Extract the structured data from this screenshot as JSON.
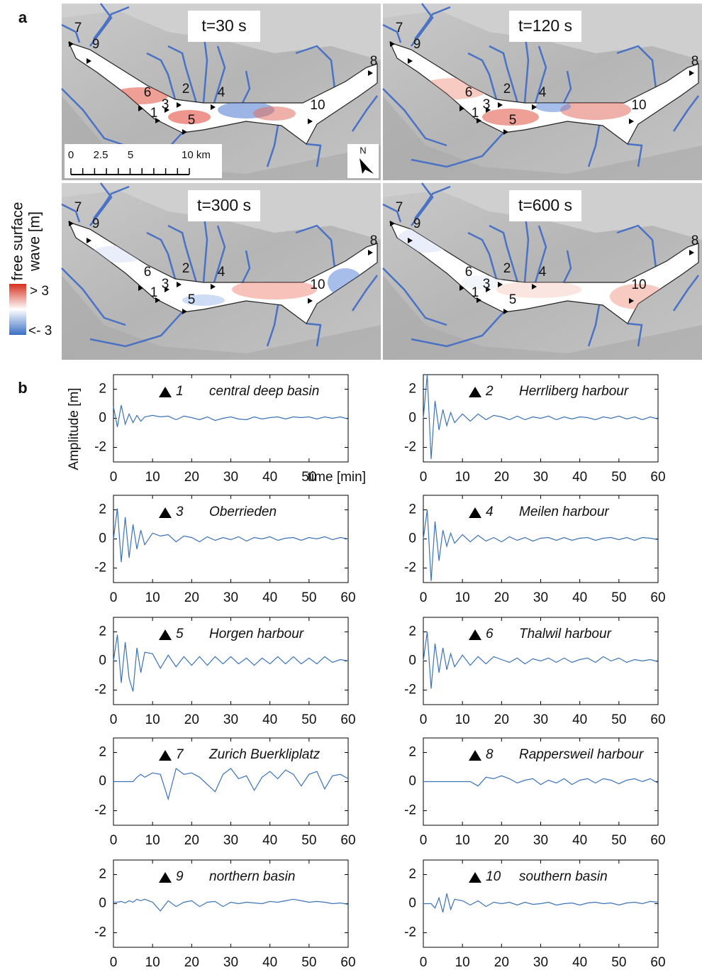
{
  "panel_a": {
    "label": "a",
    "times": [
      "t=30 s",
      "t=120 s",
      "t=300 s",
      "t=600 s"
    ],
    "stations": [
      "1",
      "2",
      "3",
      "4",
      "5",
      "6",
      "7",
      "8",
      "9",
      "10"
    ],
    "scale_labels": [
      "0",
      "2.5",
      "5",
      "10 km"
    ],
    "north": "N",
    "legend": {
      "title": [
        "free surface",
        "wave [m]"
      ],
      "high": "> 3",
      "low": "<- 3"
    }
  },
  "panel_b": {
    "label": "b"
  },
  "chart_data": [
    {
      "type": "line",
      "station": "1",
      "title": "central deep basin",
      "ylabel": "Amplitude [m]",
      "xlabel": "time [min]",
      "x": [
        0,
        1,
        2,
        3,
        4,
        5,
        6,
        7,
        8,
        10,
        12,
        14,
        16,
        18,
        20,
        22,
        24,
        26,
        28,
        30,
        32,
        34,
        36,
        38,
        40,
        42,
        44,
        46,
        48,
        50,
        52,
        54,
        56,
        58,
        60
      ],
      "series": [
        {
          "color": "#3b73b9",
          "values": [
            0.8,
            -0.6,
            0.9,
            -0.4,
            0.3,
            -0.3,
            0.2,
            -0.2,
            0.1,
            0.2,
            0.1,
            0.15,
            -0.1,
            0.15,
            0.05,
            -0.1,
            0.1,
            -0.15,
            0.0,
            0.1,
            -0.05,
            -0.1,
            0.1,
            -0.05,
            0.05,
            0.1,
            -0.05,
            0.1,
            0.05,
            0.1,
            -0.05,
            0.1,
            0.0,
            0.1,
            -0.05
          ]
        }
      ],
      "xlim": [
        0,
        60
      ],
      "ylim": [
        -3,
        3
      ],
      "xticks": [
        0,
        10,
        20,
        30,
        40,
        50
      ],
      "yticks": [
        -2,
        0,
        2
      ]
    },
    {
      "type": "line",
      "station": "2",
      "title": "Herrliberg harbour",
      "x": [
        0,
        1,
        2,
        3,
        4,
        5,
        6,
        7,
        8,
        10,
        12,
        14,
        16,
        18,
        20,
        22,
        24,
        26,
        28,
        30,
        32,
        34,
        36,
        38,
        40,
        42,
        44,
        46,
        48,
        50,
        52,
        54,
        56,
        58,
        60
      ],
      "series": [
        {
          "color": "#3b73b9",
          "values": [
            0,
            3,
            -2.8,
            1.2,
            -0.8,
            0.6,
            -0.5,
            0.4,
            -0.3,
            0.3,
            -0.2,
            0.3,
            -0.1,
            0.2,
            0.1,
            -0.1,
            0.15,
            -0.1,
            0.1,
            0.0,
            0.15,
            -0.1,
            0.1,
            -0.05,
            0.1,
            0.05,
            -0.1,
            0.1,
            0.0,
            0.15,
            -0.05,
            0.1,
            -0.1,
            0.1,
            -0.05
          ]
        }
      ],
      "xlim": [
        0,
        60
      ],
      "ylim": [
        -3,
        3
      ],
      "xticks": [
        0,
        10,
        20,
        30,
        40,
        50,
        60
      ],
      "yticks": [
        -2,
        0,
        2
      ]
    },
    {
      "type": "line",
      "station": "3",
      "title": "Oberrieden",
      "x": [
        0,
        1,
        2,
        3,
        4,
        5,
        6,
        7,
        8,
        10,
        12,
        14,
        16,
        18,
        20,
        22,
        24,
        26,
        28,
        30,
        32,
        34,
        36,
        38,
        40,
        42,
        44,
        46,
        48,
        50,
        52,
        54,
        56,
        58,
        60
      ],
      "series": [
        {
          "color": "#3b73b9",
          "values": [
            0,
            2.1,
            -1.6,
            1.5,
            -1.3,
            1.0,
            -0.7,
            0.6,
            -0.4,
            0.4,
            0.2,
            0.3,
            -0.2,
            0.2,
            0.1,
            -0.2,
            0.15,
            -0.1,
            0.1,
            -0.05,
            0.15,
            -0.15,
            0.1,
            0.0,
            0.15,
            -0.1,
            0.05,
            0.1,
            -0.1,
            0.1,
            0.0,
            0.15,
            -0.05,
            0.1,
            0.0
          ]
        }
      ],
      "xlim": [
        0,
        60
      ],
      "ylim": [
        -3,
        3
      ],
      "xticks": [
        0,
        10,
        20,
        30,
        40,
        50,
        60
      ],
      "yticks": [
        -2,
        0,
        2
      ]
    },
    {
      "type": "line",
      "station": "4",
      "title": "Meilen harbour",
      "x": [
        0,
        1,
        2,
        3,
        4,
        5,
        6,
        7,
        8,
        10,
        12,
        14,
        16,
        18,
        20,
        22,
        24,
        26,
        28,
        30,
        32,
        34,
        36,
        38,
        40,
        42,
        44,
        46,
        48,
        50,
        52,
        54,
        56,
        58,
        60
      ],
      "series": [
        {
          "color": "#3b73b9",
          "values": [
            0,
            2.0,
            -2.9,
            1.2,
            -1.5,
            0.6,
            -0.5,
            0.4,
            -0.3,
            0.3,
            -0.2,
            0.25,
            -0.15,
            0.1,
            -0.2,
            0.15,
            -0.1,
            0.1,
            -0.15,
            0.05,
            0.1,
            -0.1,
            0.1,
            -0.1,
            0.05,
            0.1,
            -0.1,
            0.05,
            0.1,
            -0.05,
            0.1,
            -0.1,
            0.1,
            0.05,
            -0.05
          ]
        }
      ],
      "xlim": [
        0,
        60
      ],
      "ylim": [
        -3,
        3
      ],
      "xticks": [
        0,
        10,
        20,
        30,
        40,
        50,
        60
      ],
      "yticks": [
        -2,
        0,
        2
      ]
    },
    {
      "type": "line",
      "station": "5",
      "title": "Horgen harbour",
      "x": [
        0,
        1,
        2,
        3,
        4,
        5,
        6,
        7,
        8,
        10,
        12,
        14,
        16,
        18,
        20,
        22,
        24,
        26,
        28,
        30,
        32,
        34,
        36,
        38,
        40,
        42,
        44,
        46,
        48,
        50,
        52,
        54,
        56,
        58,
        60
      ],
      "series": [
        {
          "color": "#3b73b9",
          "values": [
            0,
            1.8,
            -1.5,
            1.3,
            -1.2,
            -2.1,
            0.9,
            -0.8,
            0.6,
            0.5,
            -0.5,
            0.4,
            -0.4,
            0.3,
            -0.3,
            0.3,
            -0.3,
            0.3,
            -0.2,
            0.3,
            -0.2,
            0.2,
            -0.3,
            0.2,
            -0.2,
            0.3,
            -0.2,
            0.3,
            -0.2,
            0.2,
            -0.2,
            0.3,
            -0.1,
            0.1,
            0.0
          ]
        }
      ],
      "xlim": [
        0,
        60
      ],
      "ylim": [
        -3,
        3
      ],
      "xticks": [
        0,
        10,
        20,
        30,
        40,
        50,
        60
      ],
      "yticks": [
        -2,
        0,
        2
      ]
    },
    {
      "type": "line",
      "station": "6",
      "title": "Thalwil harbour",
      "x": [
        0,
        1,
        2,
        3,
        4,
        5,
        6,
        7,
        8,
        10,
        12,
        14,
        16,
        18,
        20,
        22,
        24,
        26,
        28,
        30,
        32,
        34,
        36,
        38,
        40,
        42,
        44,
        46,
        48,
        50,
        52,
        54,
        56,
        58,
        60
      ],
      "series": [
        {
          "color": "#3b73b9",
          "values": [
            0,
            2.0,
            -1.9,
            1.2,
            -0.8,
            0.9,
            -0.6,
            0.5,
            -0.4,
            0.4,
            -0.3,
            0.3,
            -0.2,
            0.3,
            0.1,
            -0.1,
            0.2,
            -0.2,
            0.15,
            0.0,
            0.2,
            -0.1,
            0.2,
            -0.1,
            0.1,
            0.2,
            -0.1,
            0.3,
            0.0,
            0.2,
            -0.1,
            0.1,
            0.0,
            0.1,
            -0.05
          ]
        }
      ],
      "xlim": [
        0,
        60
      ],
      "ylim": [
        -3,
        3
      ],
      "xticks": [
        0,
        10,
        20,
        30,
        40,
        50,
        60
      ],
      "yticks": [
        -2,
        0,
        2
      ]
    },
    {
      "type": "line",
      "station": "7",
      "title": "Zurich Buerkliplatz",
      "x": [
        0,
        1,
        2,
        3,
        4,
        5,
        6,
        7,
        8,
        10,
        12,
        14,
        16,
        18,
        20,
        22,
        24,
        26,
        28,
        30,
        32,
        34,
        36,
        38,
        40,
        42,
        44,
        46,
        48,
        50,
        52,
        54,
        56,
        58,
        60
      ],
      "series": [
        {
          "color": "#3b73b9",
          "values": [
            0,
            0,
            0,
            0,
            0,
            0,
            0.3,
            0.5,
            0.3,
            0.6,
            0.5,
            -1.2,
            0.9,
            0.5,
            0.6,
            0.3,
            -0.2,
            -0.7,
            0.5,
            0.9,
            0.2,
            0.4,
            -0.6,
            0.3,
            0.7,
            0.2,
            0.8,
            0.5,
            -0.3,
            0.5,
            0.7,
            -0.5,
            0.4,
            0.5,
            0.2
          ]
        }
      ],
      "xlim": [
        0,
        60
      ],
      "ylim": [
        -3,
        3
      ],
      "xticks": [
        0,
        10,
        20,
        30,
        40,
        50,
        60
      ],
      "yticks": [
        -2,
        0,
        2
      ]
    },
    {
      "type": "line",
      "station": "8",
      "title": "Rappersweil harbour",
      "x": [
        0,
        1,
        2,
        3,
        4,
        5,
        6,
        7,
        8,
        10,
        12,
        14,
        16,
        18,
        20,
        22,
        24,
        26,
        28,
        30,
        32,
        34,
        36,
        38,
        40,
        42,
        44,
        46,
        48,
        50,
        52,
        54,
        56,
        58,
        60
      ],
      "series": [
        {
          "color": "#3b73b9",
          "values": [
            0,
            0,
            0,
            0,
            0,
            0,
            0,
            0,
            0,
            0,
            0.0,
            -0.3,
            0.3,
            0.2,
            0.4,
            0.2,
            -0.1,
            0.1,
            0.2,
            -0.2,
            0.1,
            -0.1,
            0.2,
            -0.2,
            0.1,
            0.2,
            -0.1,
            0.2,
            0.1,
            -0.15,
            0.1,
            0.2,
            0.0,
            0.2,
            -0.1
          ]
        }
      ],
      "xlim": [
        0,
        60
      ],
      "ylim": [
        -3,
        3
      ],
      "xticks": [
        0,
        10,
        20,
        30,
        40,
        50,
        60
      ],
      "yticks": [
        -2,
        0,
        2
      ]
    },
    {
      "type": "line",
      "station": "9",
      "title": "northern basin",
      "x": [
        0,
        1,
        2,
        3,
        4,
        5,
        6,
        7,
        8,
        10,
        12,
        14,
        16,
        18,
        20,
        22,
        24,
        26,
        28,
        30,
        32,
        34,
        36,
        38,
        40,
        42,
        44,
        46,
        48,
        50,
        52,
        54,
        56,
        58,
        60
      ],
      "series": [
        {
          "color": "#3b73b9",
          "values": [
            0.1,
            0.1,
            0.15,
            0.05,
            0.2,
            0.1,
            0.3,
            0.2,
            0.3,
            0.1,
            -0.5,
            0.2,
            -0.2,
            0.1,
            0.2,
            -0.2,
            0.1,
            0.15,
            -0.2,
            0.1,
            0.0,
            0.1,
            0.05,
            0.0,
            0.15,
            0.1,
            0.2,
            0.3,
            0.2,
            0.1,
            0.15,
            0.1,
            0.0,
            0.05,
            -0.05
          ]
        }
      ],
      "xlim": [
        0,
        60
      ],
      "ylim": [
        -3,
        3
      ],
      "xticks": [
        0,
        10,
        20,
        30,
        40,
        50,
        60
      ],
      "yticks": [
        -2,
        0,
        2
      ]
    },
    {
      "type": "line",
      "station": "10",
      "title": "southern basin",
      "x": [
        0,
        1,
        2,
        3,
        4,
        5,
        6,
        7,
        8,
        10,
        12,
        14,
        16,
        18,
        20,
        22,
        24,
        26,
        28,
        30,
        32,
        34,
        36,
        38,
        40,
        42,
        44,
        46,
        48,
        50,
        52,
        54,
        56,
        58,
        60
      ],
      "series": [
        {
          "color": "#3b73b9",
          "values": [
            0,
            0,
            0,
            -0.3,
            0.4,
            -0.6,
            0.7,
            -0.4,
            0.3,
            0.2,
            -0.1,
            0.2,
            -0.2,
            0.1,
            0.0,
            0.1,
            -0.1,
            0.1,
            -0.05,
            0.0,
            0.1,
            -0.1,
            0.0,
            0.05,
            -0.1,
            0.05,
            0.1,
            0.0,
            0.05,
            -0.1,
            0.05,
            0.1,
            0.0,
            0.15,
            0.1
          ]
        }
      ],
      "xlim": [
        0,
        60
      ],
      "ylim": [
        -3,
        3
      ],
      "xticks": [
        0,
        10,
        20,
        30,
        40,
        50,
        60
      ],
      "yticks": [
        -2,
        0,
        2
      ]
    }
  ]
}
